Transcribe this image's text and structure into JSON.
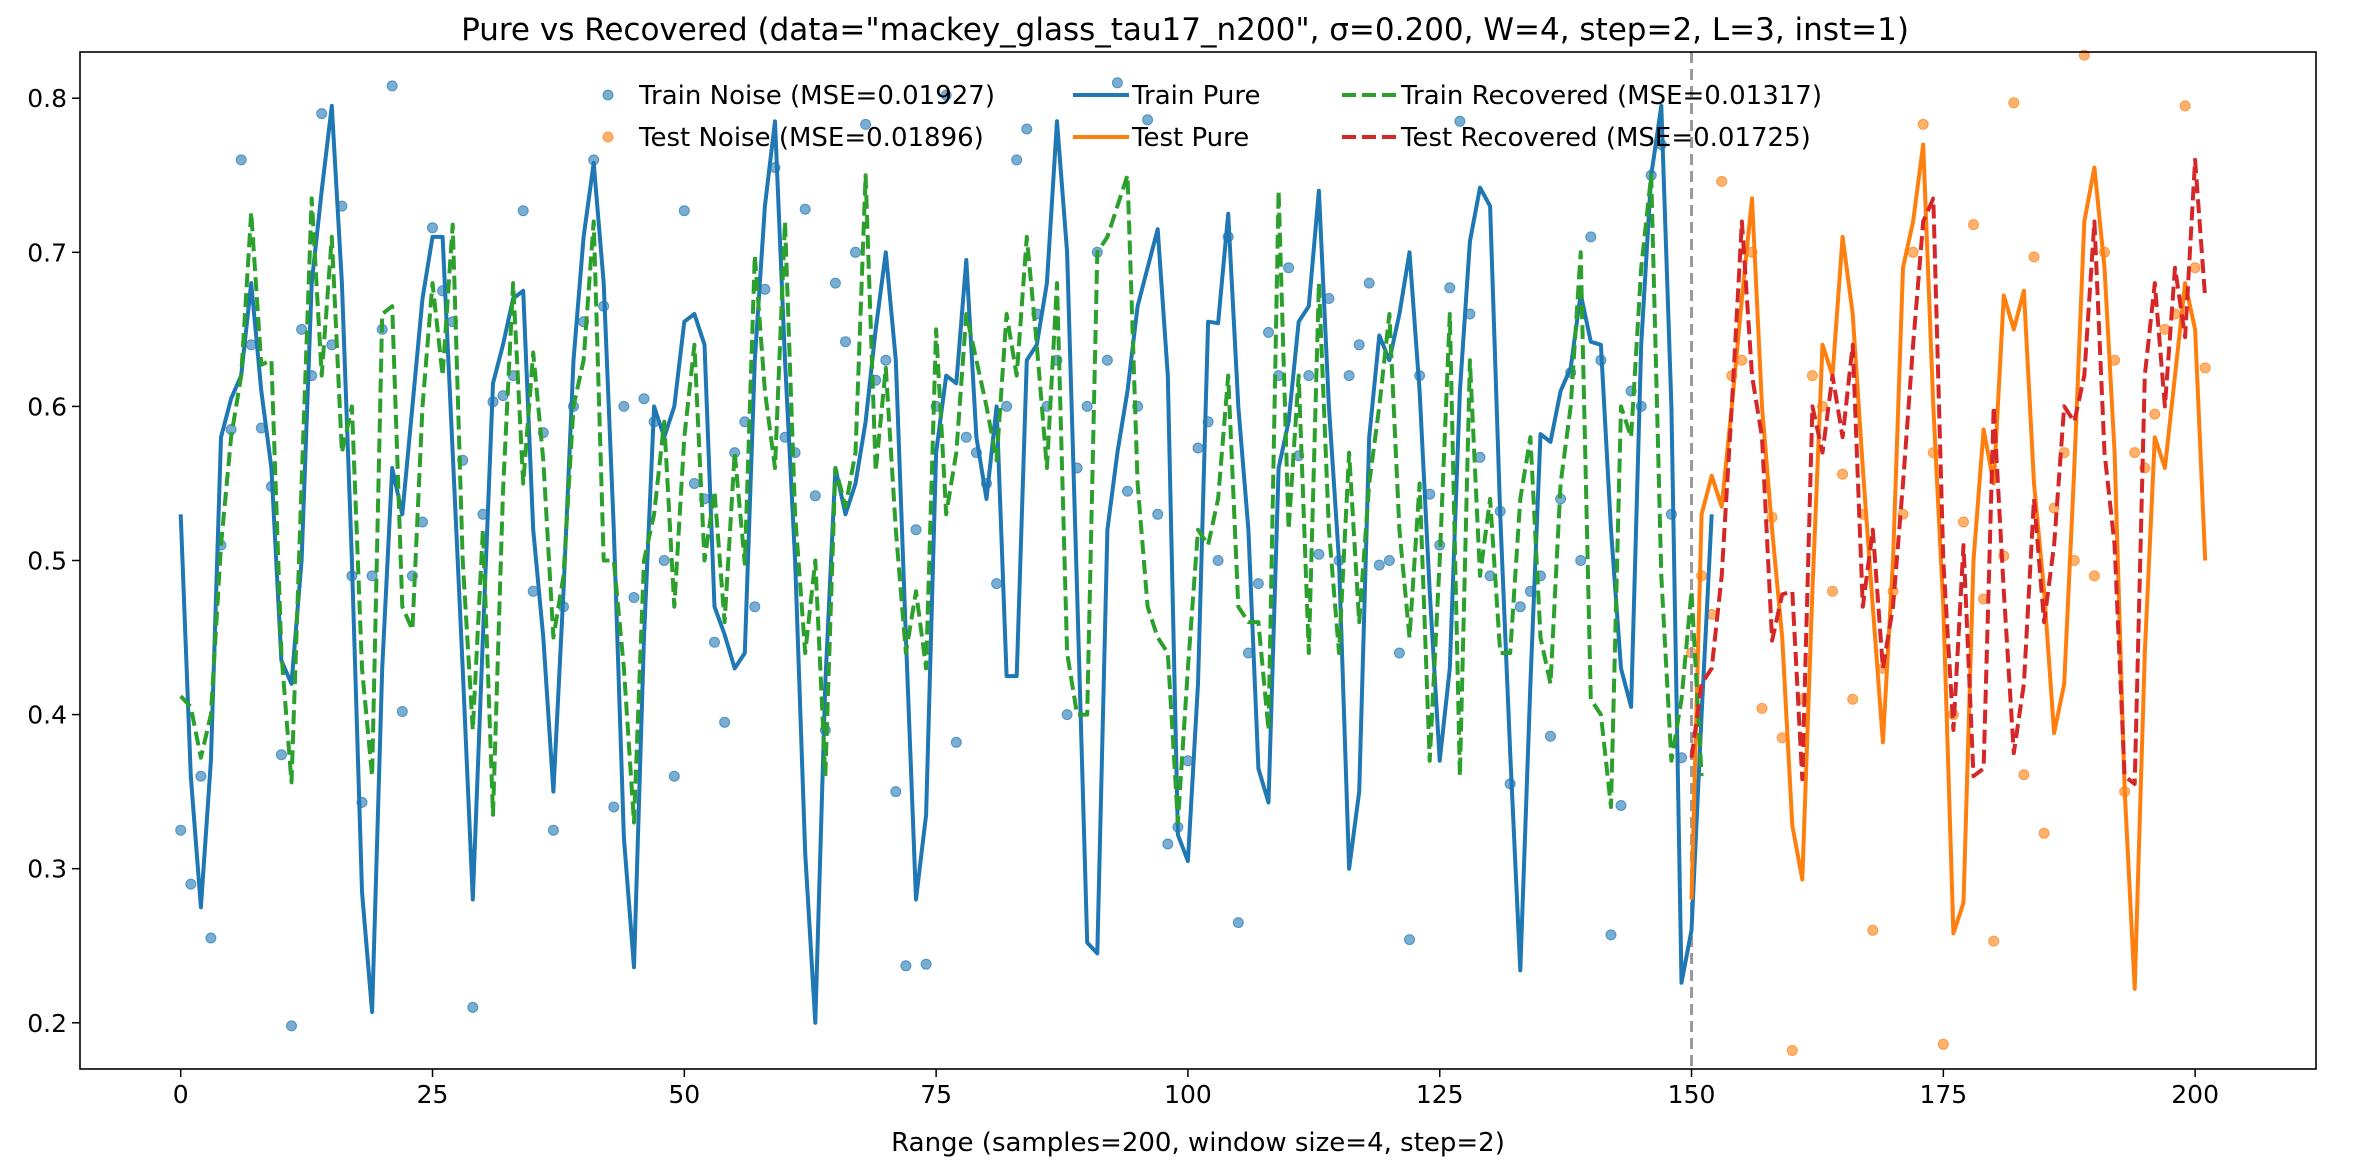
{
  "chart_data": {
    "type": "line",
    "title": "Pure vs Recovered (data=\"mackey_glass_tau17_n200\", σ=0.200, W=4, step=2, L=3, inst=1)",
    "xlabel": "Range (samples=200, window size=4, step=2)",
    "ylabel": "",
    "xlim": [
      -10,
      212
    ],
    "ylim": [
      0.17,
      0.83
    ],
    "xticks": [
      0,
      25,
      50,
      75,
      100,
      125,
      150,
      175,
      200
    ],
    "yticks": [
      0.2,
      0.3,
      0.4,
      0.5,
      0.6,
      0.7,
      0.8
    ],
    "split_x": 150,
    "grid": false,
    "legend_position": "top-center",
    "colors": {
      "train_pure": "#1f77b4",
      "test_pure": "#ff7f0e",
      "train_recovered": "#2ca02c",
      "test_recovered": "#d62728",
      "split_line": "#999999"
    },
    "legend": [
      {
        "label": "Train Noise (MSE=0.01927)",
        "kind": "scatter",
        "series": "train_noise"
      },
      {
        "label": "Test  Noise (MSE=0.01896)",
        "kind": "scatter",
        "series": "test_noise"
      },
      {
        "label": "Train Pure",
        "kind": "line",
        "series": "train_pure"
      },
      {
        "label": "Test Pure",
        "kind": "line",
        "series": "test_pure"
      },
      {
        "label": "Train Recovered (MSE=0.01317)",
        "kind": "dashed",
        "series": "train_recovered"
      },
      {
        "label": "Test  Recovered (MSE=0.01725)",
        "kind": "dashed",
        "series": "test_recovered"
      }
    ],
    "series": {
      "train_pure": {
        "x_start": 0,
        "values": [
          0.53,
          0.36,
          0.275,
          0.37,
          0.58,
          0.605,
          0.62,
          0.68,
          0.61,
          0.56,
          0.435,
          0.42,
          0.5,
          0.68,
          0.74,
          0.795,
          0.68,
          0.5,
          0.285,
          0.207,
          0.43,
          0.56,
          0.53,
          0.6,
          0.67,
          0.71,
          0.71,
          0.57,
          0.43,
          0.28,
          0.45,
          0.615,
          0.64,
          0.67,
          0.675,
          0.52,
          0.45,
          0.35,
          0.48,
          0.63,
          0.71,
          0.758,
          0.68,
          0.52,
          0.32,
          0.236,
          0.45,
          0.6,
          0.58,
          0.6,
          0.655,
          0.66,
          0.64,
          0.47,
          0.452,
          0.43,
          0.44,
          0.63,
          0.73,
          0.785,
          0.63,
          0.5,
          0.31,
          0.2,
          0.42,
          0.56,
          0.53,
          0.55,
          0.59,
          0.65,
          0.7,
          0.63,
          0.45,
          0.28,
          0.335,
          0.57,
          0.62,
          0.615,
          0.695,
          0.58,
          0.54,
          0.6,
          0.425,
          0.425,
          0.63,
          0.64,
          0.68,
          0.785,
          0.7,
          0.48,
          0.252,
          0.245,
          0.52,
          0.57,
          0.61,
          0.665,
          0.69,
          0.715,
          0.62,
          0.322,
          0.305,
          0.42,
          0.655,
          0.654,
          0.725,
          0.6,
          0.52,
          0.365,
          0.343,
          0.56,
          0.59,
          0.655,
          0.665,
          0.74,
          0.6,
          0.5,
          0.3,
          0.35,
          0.58,
          0.646,
          0.63,
          0.66,
          0.7,
          0.61,
          0.48,
          0.37,
          0.43,
          0.61,
          0.707,
          0.742,
          0.73,
          0.53,
          0.375,
          0.234,
          0.42,
          0.582,
          0.577,
          0.61,
          0.625,
          0.673,
          0.642,
          0.64,
          0.52,
          0.43,
          0.405,
          0.64,
          0.75,
          0.795,
          0.6,
          0.226,
          0.26,
          0.4,
          0.53
        ]
      },
      "test_pure": {
        "x_start": 150,
        "values": [
          0.28,
          0.53,
          0.555,
          0.535,
          0.6,
          0.67,
          0.735,
          0.6,
          0.52,
          0.45,
          0.328,
          0.293,
          0.48,
          0.64,
          0.62,
          0.71,
          0.66,
          0.56,
          0.47,
          0.382,
          0.5,
          0.69,
          0.72,
          0.77,
          0.6,
          0.47,
          0.258,
          0.278,
          0.5,
          0.585,
          0.55,
          0.672,
          0.65,
          0.675,
          0.55,
          0.48,
          0.388,
          0.42,
          0.56,
          0.72,
          0.755,
          0.69,
          0.57,
          0.352,
          0.222,
          0.44,
          0.58,
          0.56,
          0.62,
          0.68,
          0.65,
          0.5
        ]
      },
      "train_recovered": {
        "x_start": 0,
        "values": [
          0.412,
          0.405,
          0.372,
          0.4,
          0.51,
          0.58,
          0.62,
          0.726,
          0.627,
          0.63,
          0.44,
          0.356,
          0.55,
          0.735,
          0.62,
          0.71,
          0.57,
          0.6,
          0.43,
          0.36,
          0.66,
          0.665,
          0.47,
          0.455,
          0.6,
          0.68,
          0.62,
          0.718,
          0.5,
          0.39,
          0.52,
          0.335,
          0.545,
          0.68,
          0.55,
          0.635,
          0.565,
          0.45,
          0.49,
          0.6,
          0.63,
          0.72,
          0.5,
          0.5,
          0.43,
          0.33,
          0.5,
          0.53,
          0.59,
          0.47,
          0.58,
          0.64,
          0.5,
          0.545,
          0.46,
          0.57,
          0.498,
          0.698,
          0.61,
          0.56,
          0.72,
          0.53,
          0.44,
          0.5,
          0.36,
          0.56,
          0.535,
          0.57,
          0.75,
          0.558,
          0.625,
          0.52,
          0.44,
          0.48,
          0.43,
          0.65,
          0.53,
          0.57,
          0.66,
          0.63,
          0.6,
          0.565,
          0.66,
          0.62,
          0.71,
          0.64,
          0.56,
          0.68,
          0.44,
          0.4,
          0.4,
          0.7,
          0.71,
          0.73,
          0.75,
          0.55,
          0.47,
          0.45,
          0.44,
          0.33,
          0.43,
          0.52,
          0.51,
          0.54,
          0.62,
          0.47,
          0.46,
          0.46,
          0.39,
          0.74,
          0.52,
          0.62,
          0.44,
          0.68,
          0.52,
          0.44,
          0.57,
          0.46,
          0.55,
          0.6,
          0.66,
          0.52,
          0.45,
          0.55,
          0.37,
          0.5,
          0.66,
          0.36,
          0.63,
          0.49,
          0.54,
          0.44,
          0.44,
          0.54,
          0.58,
          0.45,
          0.42,
          0.55,
          0.6,
          0.7,
          0.41,
          0.4,
          0.34,
          0.6,
          0.58,
          0.69,
          0.75,
          0.49,
          0.37,
          0.41,
          0.48,
          0.36
        ]
      },
      "test_recovered": {
        "x_start": 150,
        "values": [
          0.372,
          0.42,
          0.43,
          0.49,
          0.6,
          0.72,
          0.62,
          0.58,
          0.448,
          0.478,
          0.48,
          0.358,
          0.6,
          0.57,
          0.62,
          0.58,
          0.64,
          0.47,
          0.52,
          0.43,
          0.47,
          0.55,
          0.64,
          0.72,
          0.735,
          0.5,
          0.39,
          0.51,
          0.36,
          0.365,
          0.6,
          0.48,
          0.375,
          0.42,
          0.54,
          0.46,
          0.51,
          0.6,
          0.59,
          0.62,
          0.72,
          0.57,
          0.51,
          0.36,
          0.355,
          0.62,
          0.68,
          0.6,
          0.69,
          0.645,
          0.76,
          0.67
        ]
      },
      "train_noise": {
        "x": [
          0,
          1,
          2,
          3,
          4,
          5,
          6,
          7,
          8,
          9,
          10,
          11,
          12,
          13,
          14,
          15,
          16,
          17,
          18,
          19,
          20,
          21,
          22,
          23,
          24,
          25,
          26,
          27,
          28,
          29,
          30,
          31,
          32,
          33,
          34,
          35,
          36,
          37,
          38,
          39,
          40,
          41,
          42,
          43,
          44,
          45,
          46,
          47,
          48,
          49,
          50,
          51,
          52,
          53,
          54,
          55,
          56,
          57,
          58,
          59,
          60,
          61,
          62,
          63,
          64,
          65,
          66,
          67,
          68,
          69,
          70,
          71,
          72,
          73,
          74,
          75,
          76,
          77,
          78,
          79,
          80,
          81,
          82,
          83,
          84,
          85,
          86,
          87,
          88,
          89,
          90,
          91,
          92,
          93,
          94,
          95,
          96,
          97,
          98,
          99,
          100,
          101,
          102,
          103,
          104,
          105,
          106,
          107,
          108,
          109,
          110,
          111,
          112,
          113,
          114,
          115,
          116,
          117,
          118,
          119,
          120,
          121,
          122,
          123,
          124,
          125,
          126,
          127,
          128,
          129,
          130,
          131,
          132,
          133,
          134,
          135,
          136,
          137,
          138,
          139,
          140,
          141,
          142,
          143,
          144,
          145,
          146,
          147,
          148,
          149
        ],
        "y": [
          0.325,
          0.29,
          0.36,
          0.255,
          0.51,
          0.585,
          0.76,
          0.64,
          0.586,
          0.548,
          0.374,
          0.198,
          0.65,
          0.62,
          0.79,
          0.64,
          0.73,
          0.49,
          0.343,
          0.49,
          0.65,
          0.808,
          0.402,
          0.49,
          0.525,
          0.716,
          0.675,
          0.655,
          0.565,
          0.21,
          0.53,
          0.603,
          0.607,
          0.62,
          0.727,
          0.48,
          0.583,
          0.325,
          0.47,
          0.6,
          0.655,
          0.76,
          0.665,
          0.34,
          0.6,
          0.476,
          0.605,
          0.59,
          0.5,
          0.36,
          0.727,
          0.55,
          0.54,
          0.447,
          0.395,
          0.57,
          0.59,
          0.47,
          0.676,
          0.755,
          0.58,
          0.57,
          0.728,
          0.542,
          0.39,
          0.68,
          0.642,
          0.7,
          0.783,
          0.617,
          0.63,
          0.35,
          0.237,
          0.52,
          0.238,
          0.6,
          0.802,
          0.382,
          0.58,
          0.57,
          0.55,
          0.485,
          0.6,
          0.76,
          0.78,
          0.66,
          0.6,
          0.63,
          0.4,
          0.56,
          0.6,
          0.7,
          0.63,
          0.81,
          0.545,
          0.6,
          0.786,
          0.53,
          0.316,
          0.327,
          0.37,
          0.573,
          0.59,
          0.5,
          0.71,
          0.265,
          0.44,
          0.485,
          0.648,
          0.62,
          0.69,
          0.568,
          0.62,
          0.504,
          0.67,
          0.5,
          0.62,
          0.64,
          0.68,
          0.497,
          0.5,
          0.44,
          0.254,
          0.62,
          0.543,
          0.51,
          0.677,
          0.785,
          0.66,
          0.567,
          0.49,
          0.532,
          0.355,
          0.47,
          0.48,
          0.49,
          0.386,
          0.54,
          0.622,
          0.5,
          0.71,
          0.63,
          0.257,
          0.341,
          0.61,
          0.6,
          0.75,
          0.77,
          0.53,
          0.372
        ]
      },
      "test_noise": {
        "x": [
          150,
          151,
          152,
          153,
          154,
          155,
          156,
          157,
          158,
          159,
          160,
          161,
          162,
          163,
          164,
          165,
          166,
          167,
          168,
          169,
          170,
          171,
          172,
          173,
          174,
          175,
          176,
          177,
          178,
          179,
          180,
          181,
          182,
          183,
          184,
          185,
          186,
          187,
          188,
          189,
          190,
          191,
          192,
          193,
          194,
          195,
          196,
          197,
          198,
          199,
          200,
          201
        ],
        "y": [
          0.44,
          0.49,
          0.465,
          0.746,
          0.62,
          0.63,
          0.7,
          0.404,
          0.528,
          0.385,
          0.182,
          0.41,
          0.62,
          0.6,
          0.48,
          0.556,
          0.41,
          0.53,
          0.26,
          0.43,
          0.48,
          0.53,
          0.7,
          0.783,
          0.57,
          0.186,
          0.4,
          0.525,
          0.718,
          0.475,
          0.253,
          0.503,
          0.797,
          0.361,
          0.697,
          0.323,
          0.534,
          0.57,
          0.5,
          0.828,
          0.49,
          0.7,
          0.63,
          0.35,
          0.57,
          0.56,
          0.595,
          0.65,
          0.66,
          0.795,
          0.69,
          0.625
        ]
      }
    }
  }
}
